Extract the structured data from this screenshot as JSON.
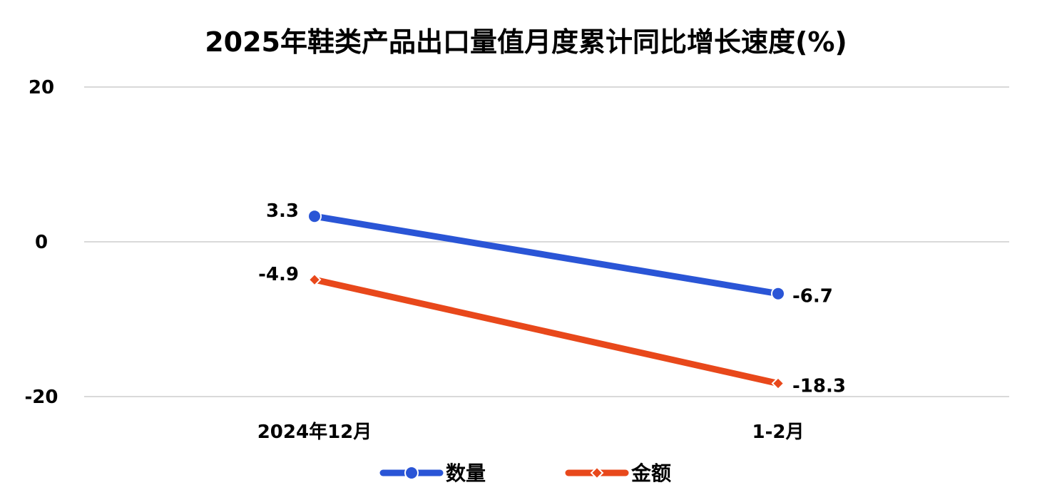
{
  "chart_data": {
    "type": "line",
    "title": "2025年鞋类产品出口量值月度累计同比增长速度(%)",
    "categories": [
      "2024年12月",
      "1-2月"
    ],
    "series": [
      {
        "name": "数量",
        "values": [
          3.3,
          -6.7
        ],
        "color": "#2a55d6",
        "marker": "circle"
      },
      {
        "name": "金额",
        "values": [
          -4.9,
          -18.3
        ],
        "color": "#e8481b",
        "marker": "diamond"
      }
    ],
    "ylim": [
      -20,
      20
    ],
    "yticks": [
      20,
      0,
      -20
    ],
    "grid": true,
    "legend": "bottom",
    "xlabel": "",
    "ylabel": ""
  }
}
